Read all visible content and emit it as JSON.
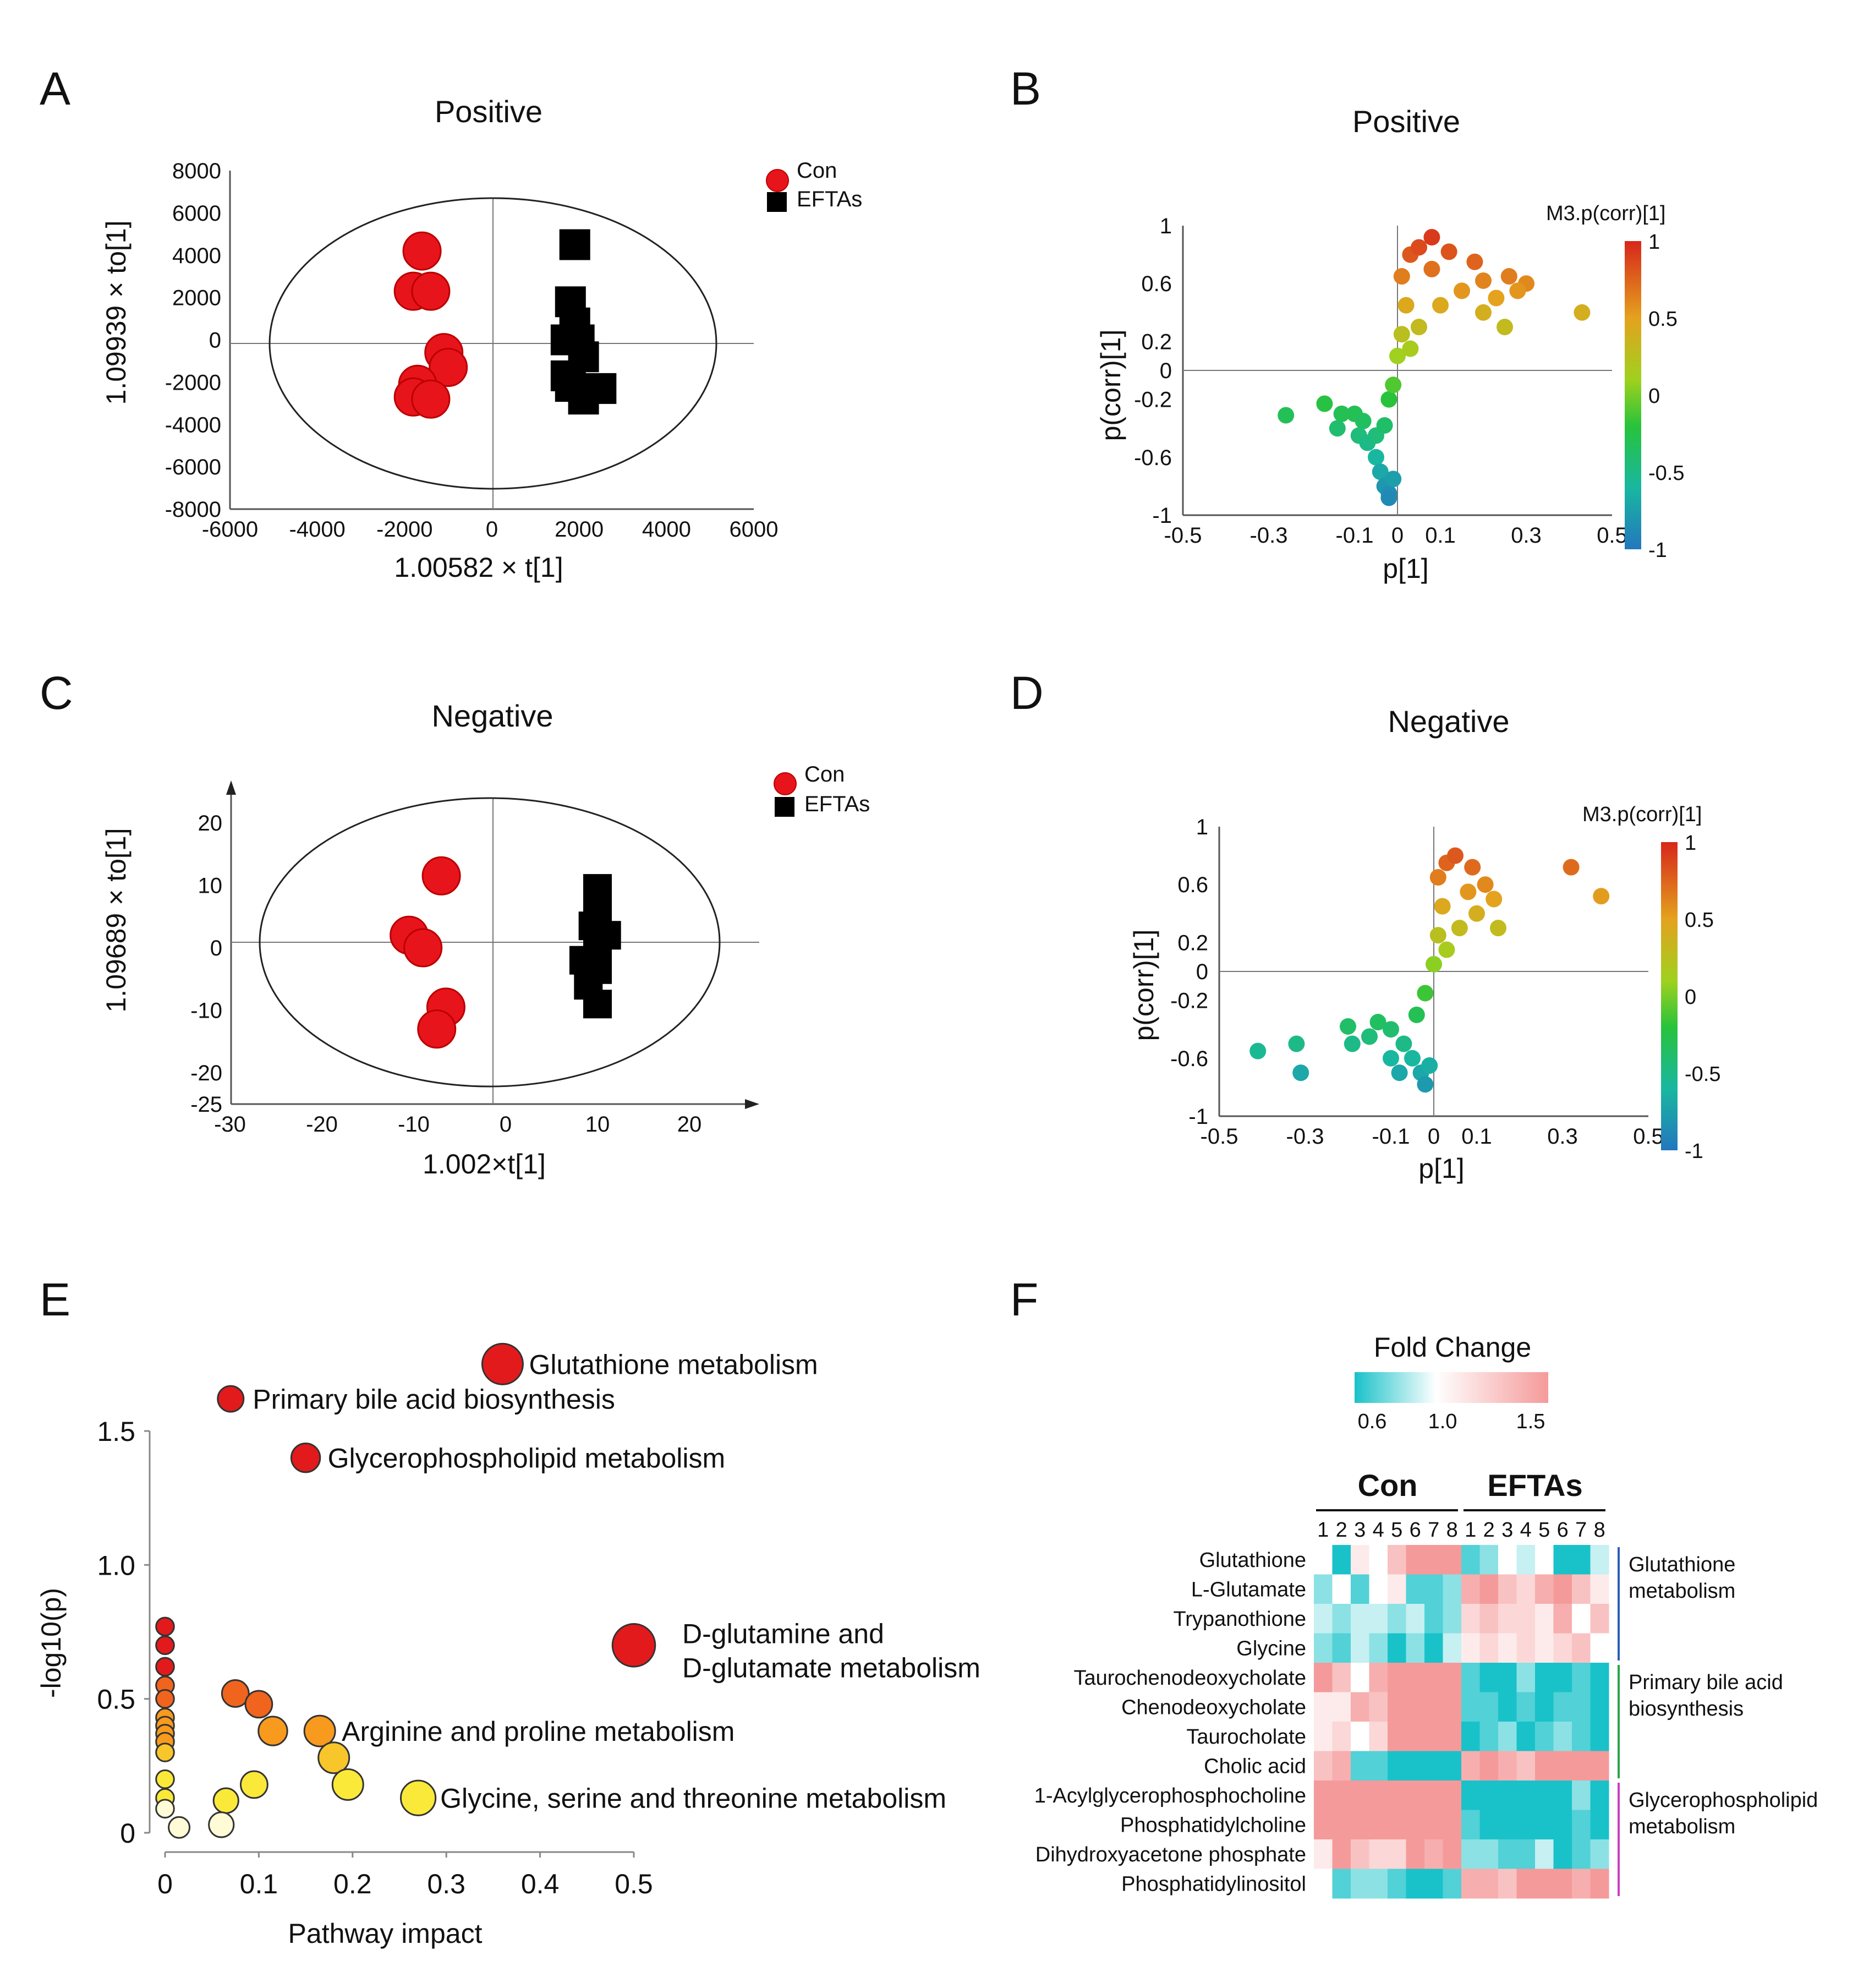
{
  "colors": {
    "con": "#e8141c",
    "eftas": "#000000",
    "hm_low": "#19c2c9",
    "hm_mid": "#ffffff",
    "hm_high": "#f59a9a"
  },
  "chart_data": [
    {
      "panel": "A",
      "type": "scatter",
      "title": "Positive",
      "xlabel": "1.00582 × t[1]",
      "ylabel": "1.09939 × to[1]",
      "xlim": [
        -6000,
        6000
      ],
      "ylim": [
        -8000,
        8000
      ],
      "xticks": [
        "-6000",
        "-4000",
        "-2000",
        "0",
        "2000",
        "4000",
        "6000"
      ],
      "yticks": [
        "8000",
        "6000",
        "4000",
        "2000",
        "0",
        "-2000",
        "-4000",
        "-6000",
        "-8000"
      ],
      "legend": [
        "Con",
        "EFTAs"
      ],
      "series": [
        {
          "name": "Con",
          "marker": "circle",
          "points": [
            [
              -1600,
              4200
            ],
            [
              -1800,
              2300
            ],
            [
              -1400,
              2300
            ],
            [
              -1100,
              -600
            ],
            [
              -1000,
              -1300
            ],
            [
              -1700,
              -2100
            ],
            [
              -1800,
              -2700
            ],
            [
              -1400,
              -2800
            ]
          ]
        },
        {
          "name": "EFTAs",
          "marker": "square",
          "points": [
            [
              1900,
              4500
            ],
            [
              1800,
              1800
            ],
            [
              1900,
              800
            ],
            [
              2000,
              0
            ],
            [
              1700,
              0
            ],
            [
              2100,
              -800
            ],
            [
              1700,
              -1700
            ],
            [
              1800,
              -2200
            ],
            [
              2100,
              -2800
            ],
            [
              2500,
              -2300
            ]
          ]
        }
      ]
    },
    {
      "panel": "B",
      "type": "scatter",
      "title": "Positive",
      "xlabel": "p[1]",
      "ylabel": "p(corr)[1]",
      "xlim": [
        -0.5,
        0.5
      ],
      "ylim": [
        -1,
        1
      ],
      "xticks": [
        "-0.5",
        "-0.3",
        "-0.1",
        "0",
        "0.1",
        "0.3",
        "0.5"
      ],
      "yticks": [
        "1",
        "0.6",
        "0.2",
        "0",
        "-0.2",
        "-0.6",
        "-1"
      ],
      "colorbar": {
        "label": "M3.p(corr)[1]",
        "ticks": [
          "1",
          "0.5",
          "0",
          "-0.5",
          "-1"
        ]
      },
      "points": [
        [
          -0.26,
          -0.31
        ],
        [
          -0.17,
          -0.23
        ],
        [
          -0.13,
          -0.3
        ],
        [
          -0.14,
          -0.4
        ],
        [
          -0.1,
          -0.3
        ],
        [
          -0.08,
          -0.35
        ],
        [
          -0.09,
          -0.45
        ],
        [
          -0.07,
          -0.5
        ],
        [
          -0.05,
          -0.45
        ],
        [
          -0.05,
          -0.6
        ],
        [
          -0.04,
          -0.7
        ],
        [
          -0.03,
          -0.8
        ],
        [
          -0.02,
          -0.85
        ],
        [
          -0.02,
          -0.88
        ],
        [
          -0.01,
          -0.75
        ],
        [
          -0.03,
          -0.38
        ],
        [
          -0.02,
          -0.2
        ],
        [
          -0.01,
          -0.1
        ],
        [
          0.0,
          0.1
        ],
        [
          0.01,
          0.25
        ],
        [
          0.02,
          0.45
        ],
        [
          0.01,
          0.65
        ],
        [
          0.03,
          0.8
        ],
        [
          0.05,
          0.85
        ],
        [
          0.08,
          0.92
        ],
        [
          0.12,
          0.82
        ],
        [
          0.18,
          0.75
        ],
        [
          0.2,
          0.62
        ],
        [
          0.26,
          0.65
        ],
        [
          0.23,
          0.5
        ],
        [
          0.3,
          0.6
        ],
        [
          0.2,
          0.4
        ],
        [
          0.15,
          0.55
        ],
        [
          0.08,
          0.7
        ],
        [
          0.1,
          0.45
        ],
        [
          0.05,
          0.3
        ],
        [
          0.03,
          0.15
        ],
        [
          0.25,
          0.3
        ],
        [
          0.28,
          0.55
        ],
        [
          0.43,
          0.4
        ]
      ]
    },
    {
      "panel": "C",
      "type": "scatter",
      "title": "Negative",
      "xlabel": "1.002×t[1]",
      "ylabel": "1.09689 × to[1]",
      "xlim": [
        -30,
        30
      ],
      "ylim": [
        -25,
        25
      ],
      "xticks": [
        "-30",
        "-20",
        "-10",
        "0",
        "10",
        "20"
      ],
      "yticks": [
        "20",
        "10",
        "0",
        "-10",
        "-20",
        "-25"
      ],
      "legend": [
        "Con",
        "EFTAs"
      ],
      "series": [
        {
          "name": "Con",
          "marker": "circle",
          "points": [
            [
              -7,
              11.5
            ],
            [
              -10.5,
              2
            ],
            [
              -9,
              0
            ],
            [
              -6.5,
              -9.5
            ],
            [
              -7.5,
              -13
            ]
          ]
        },
        {
          "name": "EFTAs",
          "marker": "square",
          "points": [
            [
              10,
              9.5
            ],
            [
              10,
              6.5
            ],
            [
              9.5,
              3.5
            ],
            [
              11,
              2
            ],
            [
              10,
              0
            ],
            [
              8.5,
              -2
            ],
            [
              10,
              -3.5
            ],
            [
              9,
              -6
            ],
            [
              10,
              -9
            ]
          ]
        }
      ]
    },
    {
      "panel": "D",
      "type": "scatter",
      "title": "Negative",
      "xlabel": "p[1]",
      "ylabel": "p(corr)[1]",
      "xlim": [
        -0.5,
        0.5
      ],
      "ylim": [
        -1,
        1
      ],
      "xticks": [
        "-0.5",
        "-0.3",
        "-0.1",
        "0",
        "0.1",
        "0.3",
        "0.5"
      ],
      "yticks": [
        "1",
        "0.6",
        "0.2",
        "0",
        "-0.2",
        "-0.6",
        "-1"
      ],
      "colorbar": {
        "label": "M3.p(corr)[1]",
        "ticks": [
          "1",
          "0.5",
          "0",
          "-0.5",
          "-1"
        ]
      },
      "points": [
        [
          -0.41,
          -0.55
        ],
        [
          -0.32,
          -0.5
        ],
        [
          -0.31,
          -0.7
        ],
        [
          -0.2,
          -0.38
        ],
        [
          -0.19,
          -0.5
        ],
        [
          -0.15,
          -0.45
        ],
        [
          -0.13,
          -0.35
        ],
        [
          -0.1,
          -0.4
        ],
        [
          -0.1,
          -0.6
        ],
        [
          -0.08,
          -0.7
        ],
        [
          -0.07,
          -0.5
        ],
        [
          -0.05,
          -0.6
        ],
        [
          -0.03,
          -0.7
        ],
        [
          -0.02,
          -0.78
        ],
        [
          -0.01,
          -0.65
        ],
        [
          -0.04,
          -0.3
        ],
        [
          -0.02,
          -0.15
        ],
        [
          0.0,
          0.05
        ],
        [
          0.01,
          0.25
        ],
        [
          0.02,
          0.45
        ],
        [
          0.01,
          0.65
        ],
        [
          0.03,
          0.75
        ],
        [
          0.05,
          0.8
        ],
        [
          0.09,
          0.72
        ],
        [
          0.12,
          0.6
        ],
        [
          0.14,
          0.5
        ],
        [
          0.08,
          0.55
        ],
        [
          0.15,
          0.3
        ],
        [
          0.1,
          0.4
        ],
        [
          0.06,
          0.3
        ],
        [
          0.03,
          0.15
        ],
        [
          0.32,
          0.72
        ],
        [
          0.39,
          0.52
        ]
      ]
    },
    {
      "panel": "E",
      "type": "scatter",
      "title": "",
      "xlabel": "Pathway impact",
      "ylabel": "-log10(p)",
      "xlim": [
        0,
        0.5
      ],
      "ylim": [
        0,
        1.5
      ],
      "xticks": [
        "0",
        "0.1",
        "0.2",
        "0.3",
        "0.4",
        "0.5"
      ],
      "yticks": [
        "0",
        "0.5",
        "1.0",
        "1.5"
      ],
      "points": [
        {
          "x": 0.36,
          "y": 1.75,
          "size": 3,
          "label": "Glutathione metabolism"
        },
        {
          "x": 0.07,
          "y": 1.62,
          "size": 1.5,
          "label": "Primary bile acid biosynthesis"
        },
        {
          "x": 0.15,
          "y": 1.4,
          "size": 1.8,
          "label": "Glycerophospholipid metabolism"
        },
        {
          "x": 0.5,
          "y": 0.7,
          "size": 3.2,
          "label": "D-glutamine and D-glutamate metabolism"
        },
        {
          "x": 0.165,
          "y": 0.38,
          "size": 2,
          "label": "Arginine and proline metabolism"
        },
        {
          "x": 0.27,
          "y": 0.13,
          "size": 2.4,
          "label": "Glycine, serine and threonine metabolism"
        },
        {
          "x": 0.075,
          "y": 0.52,
          "size": 1.6,
          "label": ""
        },
        {
          "x": 0.1,
          "y": 0.48,
          "size": 1.6,
          "label": ""
        },
        {
          "x": 0.115,
          "y": 0.38,
          "size": 1.8,
          "label": ""
        },
        {
          "x": 0.18,
          "y": 0.28,
          "size": 2,
          "label": ""
        },
        {
          "x": 0.195,
          "y": 0.18,
          "size": 2,
          "label": ""
        },
        {
          "x": 0.095,
          "y": 0.18,
          "size": 1.6,
          "label": ""
        },
        {
          "x": 0.065,
          "y": 0.12,
          "size": 1.4,
          "label": ""
        },
        {
          "x": 0.06,
          "y": 0.03,
          "size": 1.4,
          "label": ""
        },
        {
          "x": 0.015,
          "y": 0.02,
          "size": 1,
          "label": ""
        },
        {
          "x": 0.0,
          "y": 0.77,
          "size": 0.7,
          "label": ""
        },
        {
          "x": 0.0,
          "y": 0.7,
          "size": 0.7,
          "label": ""
        },
        {
          "x": 0.0,
          "y": 0.62,
          "size": 0.7,
          "label": ""
        },
        {
          "x": 0.0,
          "y": 0.55,
          "size": 0.7,
          "label": ""
        },
        {
          "x": 0.0,
          "y": 0.5,
          "size": 0.7,
          "label": ""
        },
        {
          "x": 0.0,
          "y": 0.43,
          "size": 0.7,
          "label": ""
        },
        {
          "x": 0.0,
          "y": 0.4,
          "size": 0.7,
          "label": ""
        },
        {
          "x": 0.0,
          "y": 0.37,
          "size": 0.7,
          "label": ""
        },
        {
          "x": 0.0,
          "y": 0.34,
          "size": 0.7,
          "label": ""
        },
        {
          "x": 0.0,
          "y": 0.3,
          "size": 0.7,
          "label": ""
        },
        {
          "x": 0.0,
          "y": 0.2,
          "size": 0.7,
          "label": ""
        },
        {
          "x": 0.0,
          "y": 0.13,
          "size": 0.7,
          "label": ""
        },
        {
          "x": 0.0,
          "y": 0.09,
          "size": 0.7,
          "label": ""
        }
      ]
    },
    {
      "panel": "F",
      "type": "heatmap",
      "colorbar": {
        "label": "Fold Change",
        "ticks": [
          "0.6",
          "1.0",
          "1.5"
        ],
        "range": [
          0.5,
          1.6
        ]
      },
      "groups": [
        "Con",
        "EFTAs"
      ],
      "columns": [
        "1",
        "2",
        "3",
        "4",
        "5",
        "6",
        "7",
        "8",
        "1",
        "2",
        "3",
        "4",
        "5",
        "6",
        "7",
        "8"
      ],
      "rows": [
        "Glutathione",
        "L-Glutamate",
        "Trypanothione",
        "Glycine",
        "Taurochenodeoxycholate",
        "Chenodeoxycholate",
        "Taurocholate",
        "Cholic acid",
        "1-Acylglycerophosphocholine",
        "Phosphatidylcholine",
        "Dihydroxyacetone phosphate",
        "Phosphatidylinositol"
      ],
      "values": [
        [
          1.0,
          0.6,
          1.1,
          1.0,
          1.3,
          1.5,
          1.5,
          1.6,
          0.7,
          0.8,
          1.0,
          0.9,
          1.0,
          0.6,
          0.6,
          0.9
        ],
        [
          0.8,
          1.0,
          0.7,
          1.0,
          1.1,
          0.7,
          0.7,
          0.8,
          1.4,
          1.5,
          1.3,
          1.2,
          1.4,
          1.5,
          1.3,
          1.1
        ],
        [
          0.9,
          0.8,
          0.9,
          0.9,
          0.8,
          0.9,
          0.7,
          0.8,
          1.2,
          1.3,
          1.2,
          1.2,
          1.1,
          1.4,
          1.0,
          1.3
        ],
        [
          0.8,
          0.7,
          0.9,
          0.8,
          0.6,
          0.8,
          0.6,
          0.9,
          1.1,
          1.2,
          1.1,
          1.2,
          1.1,
          1.2,
          1.3,
          1.0
        ],
        [
          1.5,
          1.3,
          1.0,
          1.4,
          1.6,
          1.6,
          1.6,
          1.6,
          0.7,
          0.6,
          0.6,
          0.8,
          0.6,
          0.6,
          0.7,
          0.6
        ],
        [
          1.1,
          1.1,
          1.4,
          1.3,
          1.6,
          1.6,
          1.6,
          1.6,
          0.7,
          0.7,
          0.6,
          0.7,
          0.6,
          0.7,
          0.7,
          0.6
        ],
        [
          1.1,
          1.2,
          1.0,
          1.2,
          1.6,
          1.6,
          1.6,
          1.6,
          0.6,
          0.7,
          0.8,
          0.6,
          0.7,
          0.8,
          0.7,
          0.6
        ],
        [
          1.3,
          1.4,
          0.7,
          0.7,
          0.6,
          0.6,
          0.6,
          0.6,
          1.4,
          1.5,
          1.4,
          1.3,
          1.6,
          1.6,
          1.6,
          1.6
        ],
        [
          1.6,
          1.6,
          1.6,
          1.6,
          1.6,
          1.6,
          1.6,
          1.6,
          0.6,
          0.6,
          0.6,
          0.6,
          0.6,
          0.6,
          0.8,
          0.6
        ],
        [
          1.6,
          1.6,
          1.5,
          1.6,
          1.6,
          1.6,
          1.6,
          1.6,
          0.7,
          0.6,
          0.6,
          0.6,
          0.6,
          0.6,
          0.7,
          0.6
        ],
        [
          1.1,
          1.6,
          1.3,
          1.2,
          1.2,
          1.6,
          1.4,
          1.6,
          0.8,
          0.8,
          0.7,
          0.7,
          0.9,
          0.6,
          0.7,
          0.8
        ],
        [
          1.0,
          0.7,
          0.8,
          0.8,
          0.7,
          0.6,
          0.6,
          0.7,
          1.4,
          1.4,
          1.3,
          1.5,
          1.5,
          1.5,
          1.4,
          1.5
        ]
      ],
      "row_groups": [
        {
          "label_lines": [
            "Glutathione",
            "metabolism"
          ],
          "rows": [
            0,
            3
          ],
          "color": "#2c5fb8"
        },
        {
          "label_lines": [
            "Primary bile acid",
            "biosynthesis"
          ],
          "rows": [
            4,
            7
          ],
          "color": "#2aa34a"
        },
        {
          "label_lines": [
            "Glycerophospholipid",
            "metabolism"
          ],
          "rows": [
            8,
            11
          ],
          "color": "#c83fc0"
        }
      ]
    }
  ]
}
